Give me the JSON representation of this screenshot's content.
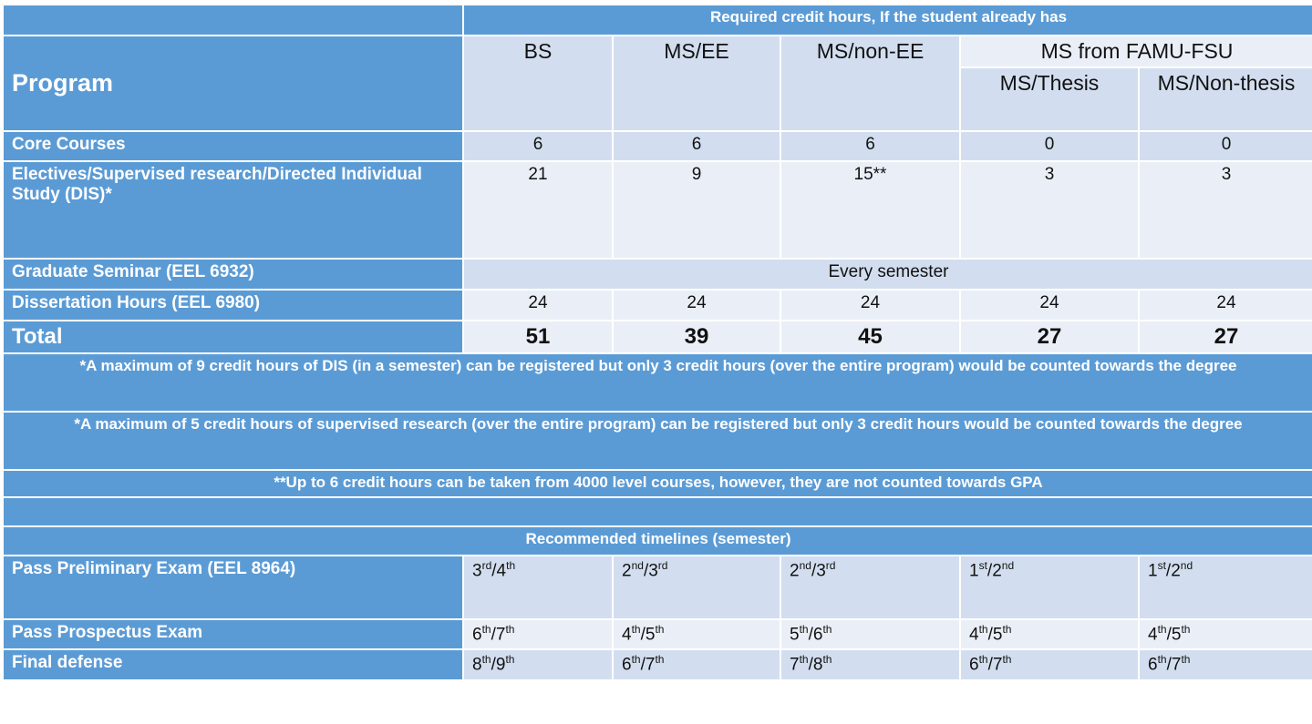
{
  "header": {
    "top": "Required credit hours, If the student already has",
    "program": "Program",
    "columns": [
      "BS",
      "MS/EE",
      "MS/non-EE"
    ],
    "group": "MS from FAMU-FSU",
    "subcolumns": [
      "MS/Thesis",
      "MS/Non-thesis"
    ]
  },
  "table": {
    "rows": [
      {
        "label": "Core Courses",
        "cells": [
          6,
          6,
          6,
          0,
          0
        ]
      },
      {
        "label": "Electives/Supervised research/Directed Individual Study (DIS)*",
        "cells": [
          21,
          9,
          "15**",
          3,
          3
        ]
      },
      {
        "label": "Graduate Seminar (EEL 6932)",
        "span": "Every semester"
      },
      {
        "label": "Dissertation Hours (EEL 6980)",
        "cells": [
          24,
          24,
          24,
          24,
          24
        ]
      },
      {
        "label": "Total",
        "cells": [
          51,
          39,
          45,
          27,
          27
        ]
      }
    ]
  },
  "notes": [
    "*A maximum of 9 credit hours of DIS  (in a semester) can be registered but only 3 credit hours (over the entire program)  would be counted towards the degree",
    "*A maximum of 5 credit hours of supervised research (over the entire program) can be registered but only 3 credit hours would be counted towards the degree",
    "**Up to 6 credit hours can be taken from 4000 level courses, however, they are not counted towards GPA"
  ],
  "timeline": {
    "title": "Recommended timelines (semester)",
    "rows": [
      {
        "label": "Pass Preliminary Exam (EEL 8964)",
        "cells": [
          [
            "3",
            {
              "sup": "rd"
            },
            "/4",
            {
              "sup": "th"
            }
          ],
          [
            "2",
            {
              "sup": "nd"
            },
            "/3",
            {
              "sup": "rd"
            }
          ],
          [
            "2",
            {
              "sup": "nd"
            },
            "/3",
            {
              "sup": "rd"
            }
          ],
          [
            "1",
            {
              "sup": "st"
            },
            "/2",
            {
              "sup": "nd"
            }
          ],
          [
            "1",
            {
              "sup": "st"
            },
            "/2",
            {
              "sup": "nd"
            }
          ]
        ]
      },
      {
        "label": "Pass Prospectus Exam",
        "cells": [
          [
            "6",
            {
              "sup": "th"
            },
            "/7",
            {
              "sup": "th"
            }
          ],
          [
            "4",
            {
              "sup": "th"
            },
            "/5",
            {
              "sup": "th"
            }
          ],
          [
            "5",
            {
              "sup": "th"
            },
            "/6",
            {
              "sup": "th"
            }
          ],
          [
            "4",
            {
              "sup": "th"
            },
            "/5",
            {
              "sup": "th"
            }
          ],
          [
            "4",
            {
              "sup": "th"
            },
            "/5",
            {
              "sup": "th"
            }
          ]
        ]
      },
      {
        "label": "Final defense",
        "cells": [
          [
            "8",
            {
              "sup": "th"
            },
            "/9",
            {
              "sup": "th"
            }
          ],
          [
            "6",
            {
              "sup": "th"
            },
            "/7",
            {
              "sup": "th"
            }
          ],
          [
            "7",
            {
              "sup": "th"
            },
            "/8",
            {
              "sup": "th"
            }
          ],
          [
            "6",
            {
              "sup": "th"
            },
            "/7",
            {
              "sup": "th"
            }
          ],
          [
            "6",
            {
              "sup": "th"
            },
            "/7",
            {
              "sup": "th"
            }
          ]
        ]
      }
    ]
  }
}
